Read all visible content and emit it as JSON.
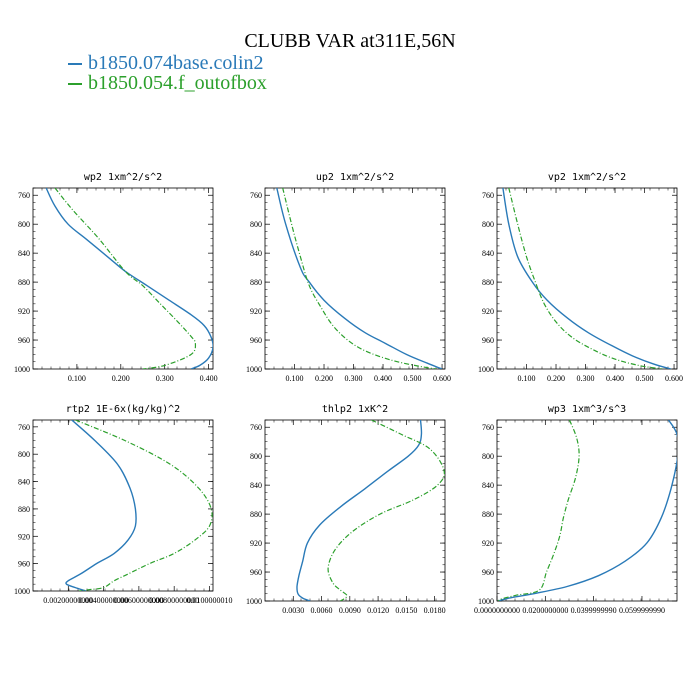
{
  "title": "CLUBB VAR at311E,56N",
  "legend": [
    {
      "label": "b1850.074base.colin2",
      "color": "#2a7ab8"
    },
    {
      "label": "b1850.054.f_outofbox",
      "color": "#2ca02c"
    }
  ],
  "chart_data": [
    {
      "type": "line",
      "title": "wp2   1xm^2/s^2",
      "y_axis": "pressure (inverted)",
      "ylim": [
        1000,
        750
      ],
      "yticks": [
        "760",
        "800",
        "840",
        "880",
        "920",
        "960",
        "1000"
      ],
      "xlim": [
        0,
        0.41
      ],
      "xticks": [
        "0.100",
        "0.200",
        "0.300",
        "0.400"
      ],
      "series": [
        {
          "name": "b1850.074base.colin2",
          "x": [
            0.03,
            0.05,
            0.08,
            0.12,
            0.17,
            0.21,
            0.26,
            0.31,
            0.36,
            0.39,
            0.405,
            0.41,
            0.4,
            0.38,
            0.36
          ],
          "y": [
            750,
            775,
            800,
            820,
            845,
            865,
            885,
            905,
            925,
            940,
            955,
            970,
            985,
            995,
            1000
          ]
        },
        {
          "name": "b1850.054.f_outofbox",
          "x": [
            0.05,
            0.09,
            0.15,
            0.21,
            0.25,
            0.29,
            0.33,
            0.36,
            0.37,
            0.36,
            0.3,
            0.25
          ],
          "y": [
            750,
            780,
            820,
            865,
            885,
            910,
            935,
            955,
            965,
            980,
            995,
            1000
          ]
        }
      ]
    },
    {
      "type": "line",
      "title": "up2   1xm^2/s^2",
      "y_axis": "pressure (inverted)",
      "ylim": [
        1000,
        750
      ],
      "yticks": [
        "760",
        "800",
        "840",
        "880",
        "920",
        "960",
        "1000"
      ],
      "xlim": [
        0,
        0.61
      ],
      "xticks": [
        "0.100",
        "0.200",
        "0.300",
        "0.400",
        "0.500",
        "0.600"
      ],
      "series": [
        {
          "name": "b1850.074base.colin2",
          "x": [
            0.04,
            0.07,
            0.12,
            0.15,
            0.2,
            0.27,
            0.34,
            0.41,
            0.48,
            0.55,
            0.6
          ],
          "y": [
            750,
            800,
            860,
            880,
            905,
            930,
            950,
            965,
            980,
            992,
            1000
          ]
        },
        {
          "name": "b1850.054.f_outofbox",
          "x": [
            0.06,
            0.09,
            0.12,
            0.15,
            0.19,
            0.23,
            0.28,
            0.34,
            0.43,
            0.52,
            0.58
          ],
          "y": [
            750,
            800,
            845,
            885,
            915,
            940,
            960,
            975,
            988,
            996,
            1000
          ]
        }
      ]
    },
    {
      "type": "line",
      "title": "vp2   1xm^2/s^2",
      "y_axis": "pressure (inverted)",
      "ylim": [
        1000,
        750
      ],
      "yticks": [
        "760",
        "800",
        "840",
        "880",
        "920",
        "960",
        "1000"
      ],
      "xlim": [
        0,
        0.61
      ],
      "xticks": [
        "0.100",
        "0.200",
        "0.300",
        "0.400",
        "0.500",
        "0.600"
      ],
      "series": [
        {
          "name": "b1850.074base.colin2",
          "x": [
            0.02,
            0.04,
            0.07,
            0.12,
            0.17,
            0.24,
            0.31,
            0.39,
            0.46,
            0.53,
            0.59
          ],
          "y": [
            750,
            800,
            845,
            880,
            905,
            930,
            950,
            968,
            982,
            993,
            1000
          ]
        },
        {
          "name": "b1850.054.f_outofbox",
          "x": [
            0.04,
            0.07,
            0.1,
            0.13,
            0.16,
            0.2,
            0.25,
            0.31,
            0.39,
            0.48,
            0.56
          ],
          "y": [
            750,
            800,
            845,
            880,
            910,
            935,
            955,
            970,
            985,
            995,
            1000
          ]
        }
      ]
    },
    {
      "type": "line",
      "title": "rtp2   1E-6x(kg/kg)^2",
      "y_axis": "pressure (inverted)",
      "ylim": [
        1000,
        750
      ],
      "yticks": [
        "760",
        "800",
        "840",
        "880",
        "920",
        "960",
        "1000"
      ],
      "xlim": [
        0,
        0.0102
      ],
      "xticks": [
        "0.00200000000",
        "0.00400000000",
        "0.00600000000",
        "0.00800000000",
        "0.0100000010"
      ],
      "series": [
        {
          "name": "b1850.074base.colin2",
          "x": [
            0.0022,
            0.0035,
            0.0048,
            0.0055,
            0.0058,
            0.0058,
            0.0054,
            0.0046,
            0.0036,
            0.0027,
            0.002,
            0.0019,
            0.0024,
            0.003
          ],
          "y": [
            750,
            780,
            815,
            850,
            880,
            905,
            925,
            945,
            960,
            975,
            985,
            990,
            995,
            1000
          ]
        },
        {
          "name": "b1850.054.f_outofbox",
          "x": [
            0.0024,
            0.0052,
            0.0078,
            0.0094,
            0.0101,
            0.01,
            0.0092,
            0.008,
            0.0066,
            0.0054,
            0.0046,
            0.004,
            0.0032,
            0.0026
          ],
          "y": [
            750,
            780,
            815,
            850,
            880,
            905,
            925,
            945,
            960,
            975,
            985,
            995,
            998,
            1000
          ]
        }
      ]
    },
    {
      "type": "line",
      "title": "thlp2   1xK^2",
      "y_axis": "pressure (inverted)",
      "ylim": [
        1000,
        750
      ],
      "yticks": [
        "760",
        "800",
        "840",
        "880",
        "920",
        "960",
        "1000"
      ],
      "xlim": [
        0,
        0.0191
      ],
      "xticks": [
        "0.0030",
        "0.0060",
        "0.0090",
        "0.0120",
        "0.0150",
        "0.0180"
      ],
      "series": [
        {
          "name": "b1850.074base.colin2",
          "x": [
            0.0165,
            0.0166,
            0.0163,
            0.0152,
            0.0131,
            0.0106,
            0.008,
            0.0058,
            0.0045,
            0.004,
            0.0036,
            0.0034,
            0.0035,
            0.004,
            0.0048
          ],
          "y": [
            750,
            770,
            785,
            800,
            820,
            845,
            870,
            895,
            920,
            945,
            965,
            980,
            990,
            996,
            1000
          ]
        },
        {
          "name": "b1850.054.f_outofbox",
          "x": [
            0.0113,
            0.0145,
            0.0175,
            0.019,
            0.0183,
            0.0158,
            0.0122,
            0.0092,
            0.0074,
            0.0067,
            0.0072,
            0.008,
            0.0087,
            0.008
          ],
          "y": [
            750,
            770,
            790,
            820,
            840,
            860,
            880,
            905,
            930,
            955,
            975,
            985,
            993,
            1000
          ]
        }
      ]
    },
    {
      "type": "line",
      "title": "wp3   1xm^3/s^3",
      "y_axis": "pressure (inverted)",
      "ylim": [
        1000,
        750
      ],
      "yticks": [
        "760",
        "800",
        "840",
        "880",
        "920",
        "960",
        "1000"
      ],
      "xlim": [
        0,
        0.0745
      ],
      "xticks": [
        "0.0000000000",
        "0.0200000000",
        "0.0399999990",
        "0.0599999990"
      ],
      "series": [
        {
          "name": "b1850.074base.colin2",
          "x": [
            0.071,
            0.0745,
            0.0748,
            0.072,
            0.068,
            0.062,
            0.053,
            0.042,
            0.029,
            0.015,
            0.005,
            0.0005
          ],
          "y": [
            750,
            770,
            800,
            845,
            885,
            920,
            945,
            965,
            980,
            990,
            996,
            1000
          ]
        },
        {
          "name": "b1850.054.f_outofbox",
          "x": [
            0.03,
            0.033,
            0.034,
            0.0325,
            0.0295,
            0.0275,
            0.026,
            0.0235,
            0.0205,
            0.0175,
            0.008,
            0.002,
            0.0005
          ],
          "y": [
            750,
            775,
            800,
            830,
            860,
            885,
            910,
            935,
            960,
            985,
            992,
            997,
            1000
          ]
        }
      ]
    }
  ]
}
